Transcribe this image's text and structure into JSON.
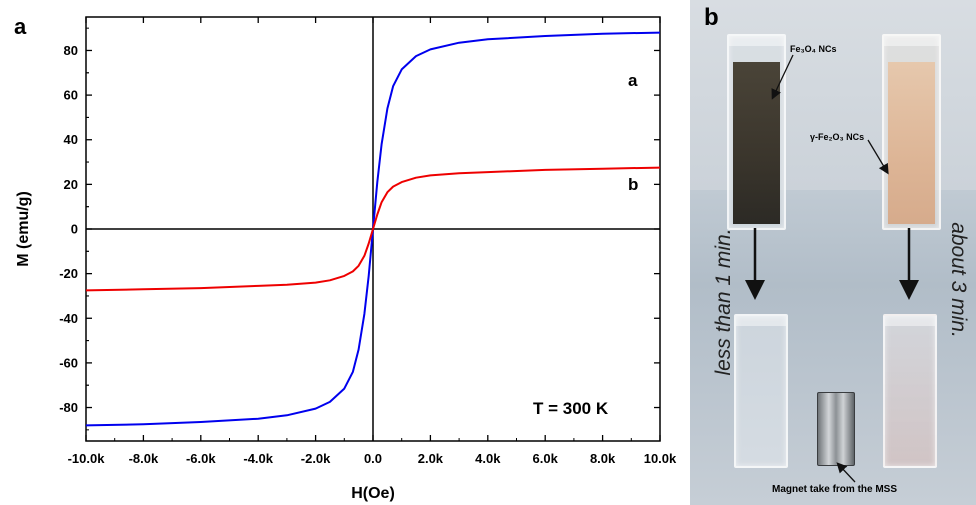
{
  "panel_a": {
    "letter": "a",
    "temperature_label": "T = 300 K",
    "curve_a_label": "a",
    "curve_b_label": "b"
  },
  "panel_b": {
    "letter": "b",
    "label_fe3o4": "Fe₃O₄ NCs",
    "label_fe2o3": "γ-Fe₂O₃ NCs",
    "text_left": "less than 1 min.",
    "text_right": "about 3 min.",
    "label_magnet": "Magnet take from the MSS"
  },
  "chart_data": {
    "type": "line",
    "title": "",
    "xlabel": "H(Oe)",
    "ylabel": "M (emu/g)",
    "xlim": [
      -10000,
      10000
    ],
    "ylim": [
      -95,
      95
    ],
    "x_ticks": [
      -10000,
      -8000,
      -6000,
      -4000,
      -2000,
      0,
      2000,
      4000,
      6000,
      8000,
      10000
    ],
    "x_tick_labels": [
      "-10.0k",
      "-8.0k",
      "-6.0k",
      "-4.0k",
      "-2.0k",
      "0.0",
      "2.0k",
      "4.0k",
      "6.0k",
      "8.0k",
      "10.0k"
    ],
    "y_ticks": [
      -80,
      -60,
      -40,
      -20,
      0,
      20,
      40,
      60,
      80
    ],
    "y_tick_labels": [
      "-80",
      "-60",
      "-40",
      "-20",
      "0",
      "20",
      "40",
      "60",
      "80"
    ],
    "grid": false,
    "series": [
      {
        "name": "a",
        "color": "#0000ee",
        "x": [
          -10000,
          -8000,
          -6000,
          -4000,
          -3000,
          -2000,
          -1500,
          -1000,
          -700,
          -500,
          -300,
          -150,
          0,
          150,
          300,
          500,
          700,
          1000,
          1500,
          2000,
          3000,
          4000,
          6000,
          8000,
          10000
        ],
        "y": [
          -88,
          -87.5,
          -86.5,
          -85,
          -83.5,
          -80.5,
          -77.5,
          -71.5,
          -64,
          -54,
          -38,
          -21,
          0,
          21,
          38,
          54,
          64,
          71.5,
          77.5,
          80.5,
          83.5,
          85,
          86.5,
          87.5,
          88
        ]
      },
      {
        "name": "b",
        "color": "#ee0000",
        "x": [
          -10000,
          -8000,
          -6000,
          -4000,
          -3000,
          -2000,
          -1500,
          -1000,
          -700,
          -500,
          -300,
          -150,
          0,
          150,
          300,
          500,
          700,
          1000,
          1500,
          2000,
          3000,
          4000,
          6000,
          8000,
          10000
        ],
        "y": [
          -27.5,
          -27,
          -26.5,
          -25.5,
          -25,
          -24,
          -23,
          -21,
          -19,
          -16.5,
          -12,
          -6.5,
          0,
          6.5,
          12,
          16.5,
          19,
          21,
          23,
          24,
          25,
          25.5,
          26.5,
          27,
          27.5
        ]
      }
    ]
  }
}
